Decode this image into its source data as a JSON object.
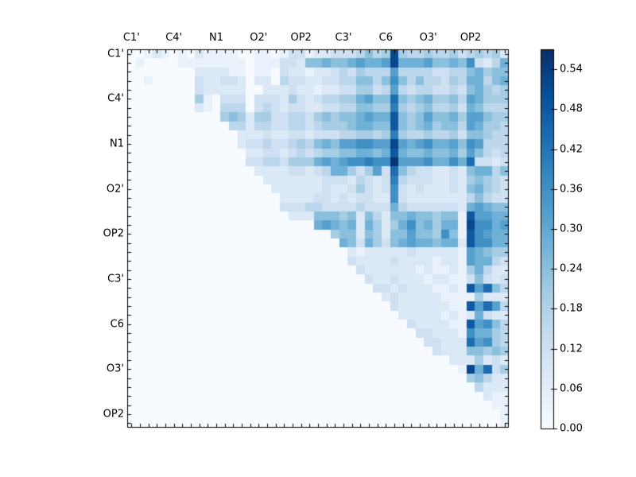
{
  "figure": {
    "background": "#ffffff",
    "description": "Upper-triangular heatmap of pairwise values between atom positions, Blues colormap, with vertical colorbar"
  },
  "chart_data": {
    "type": "heatmap",
    "n_cols": 45,
    "n_rows": 42,
    "x_tick_labels": [
      "C1'",
      "C4'",
      "N1",
      "O2'",
      "OP2",
      "C3'",
      "C6",
      "O3'",
      "OP2"
    ],
    "y_tick_labels": [
      "C1'",
      "C4'",
      "N1",
      "O2'",
      "OP2",
      "C3'",
      "C6",
      "O3'",
      "OP2"
    ],
    "x_label_positions": [
      0,
      5,
      10,
      15,
      20,
      25,
      30,
      35,
      40
    ],
    "y_label_positions": [
      0,
      5,
      10,
      15,
      20,
      25,
      30,
      35,
      40
    ],
    "colormap": "Blues",
    "vmin": 0.0,
    "vmax": 0.57,
    "value_scale": 0.04,
    "matrix_encoding": "each row is a string of 45 hex digits; cell value = digit * value_scale; 0 = empty/blank (lower triangle)",
    "matrix_rows": [
      "001210102111100110133122333464.5d54454453.45452",
      "010000111111110111332667667877.8d77786676.93247",
      "000000002222110110322122343544.4844443344.67566",
      "001000003223320220433223344664.6964644354.77467",
      "000000003222220022232212233553.4843443343.67545",
      "000000005103330333253234455786.6b65675564.87555",
      "000000002104440343233223344665.5a54564453.76444",
      "000000000005652553344356566787.7c65686675.88655",
      "000000000000442443344345556776.6c65675664.87554",
      "000000000000022232233233344554.5a54454453.66544",
      "000000000000023343345467688998.8d87897786.98444",
      "000000000000002233234345566776.7c76676675.86434",
      "000000000000003344355578789.9a9.9e88897797.b3323",
      "000000000000000222233234775358.3b64332232.67746",
      "000000000000000022222223332432.3a43332232.56543",
      "000000000000000002222223223532.3932322232.67543",
      "000000000000000000222233232332.2932222222.46433",
      "000000000000000000333443333433.3743333332.78766",
      "000000000000000000022266656264.2667665661.c8877",
      "000000000000000000000078767275.2579675771.d9978",
      "000000000000000000000000566265.2668665961.c9877",
      "000000000000000000000000076375.3678776772.c9977",
      "000000000000000000000000002122.2223222221.87655",
      "000000000000000000000000003222.2322221221.87743",
      "000000000000000000000000000322.2222121121.57422",
      "000000000000000000000000000032.2322212211.36323",
      "000000000000000000000000000003.3232221121.c8b64",
      "000000000000000000000000000000.2322222111.15222",
      "000000000000000000000000000000.0322222211.c8b84",
      "000000000000000000000000000000.0022222121.27322",
      "000000000000000000000000000000.0003222211.c8964",
      "000000000000000000000000000000.0000332221.97754",
      "000000000000000000000000000000.0000033222.b8954",
      "000000000000000000000000000000.0000003222.66565",
      "000000000000000000000000000000.0000000022.25232",
      "000000000000000000000000000000.0000000001.d7b35",
      "000000000000000000000000000000.0000000000.56422",
      "000000000000000000000000000000.0000000000.04222",
      "000000000000000000000000000000.0000000000.00211",
      "000000000000000000000000000000.0000000000.00011",
      "000000000000000000000000000000.0000000000.00001",
      "000000000000000000000000000000.0000000000.00001"
    ],
    "colorbar": {
      "tick_labels": [
        "0.54",
        "0.48",
        "0.42",
        "0.36",
        "0.30",
        "0.24",
        "0.18",
        "0.12",
        "0.06",
        "0.00"
      ],
      "tick_values": [
        0.54,
        0.48,
        0.42,
        0.36,
        0.3,
        0.24,
        0.18,
        0.12,
        0.06,
        0.0
      ],
      "orientation": "vertical",
      "position": "right"
    },
    "grid": false,
    "legend": false
  },
  "colors": {
    "colormap_stops": [
      "#f7fbff",
      "#deebf7",
      "#c6dbef",
      "#9ecae1",
      "#6baed6",
      "#4292c6",
      "#2171b5",
      "#08519c",
      "#08306b"
    ],
    "axis_color": "#000000",
    "tick_color": "#000000",
    "label_color": "#000000",
    "background": "#ffffff"
  }
}
